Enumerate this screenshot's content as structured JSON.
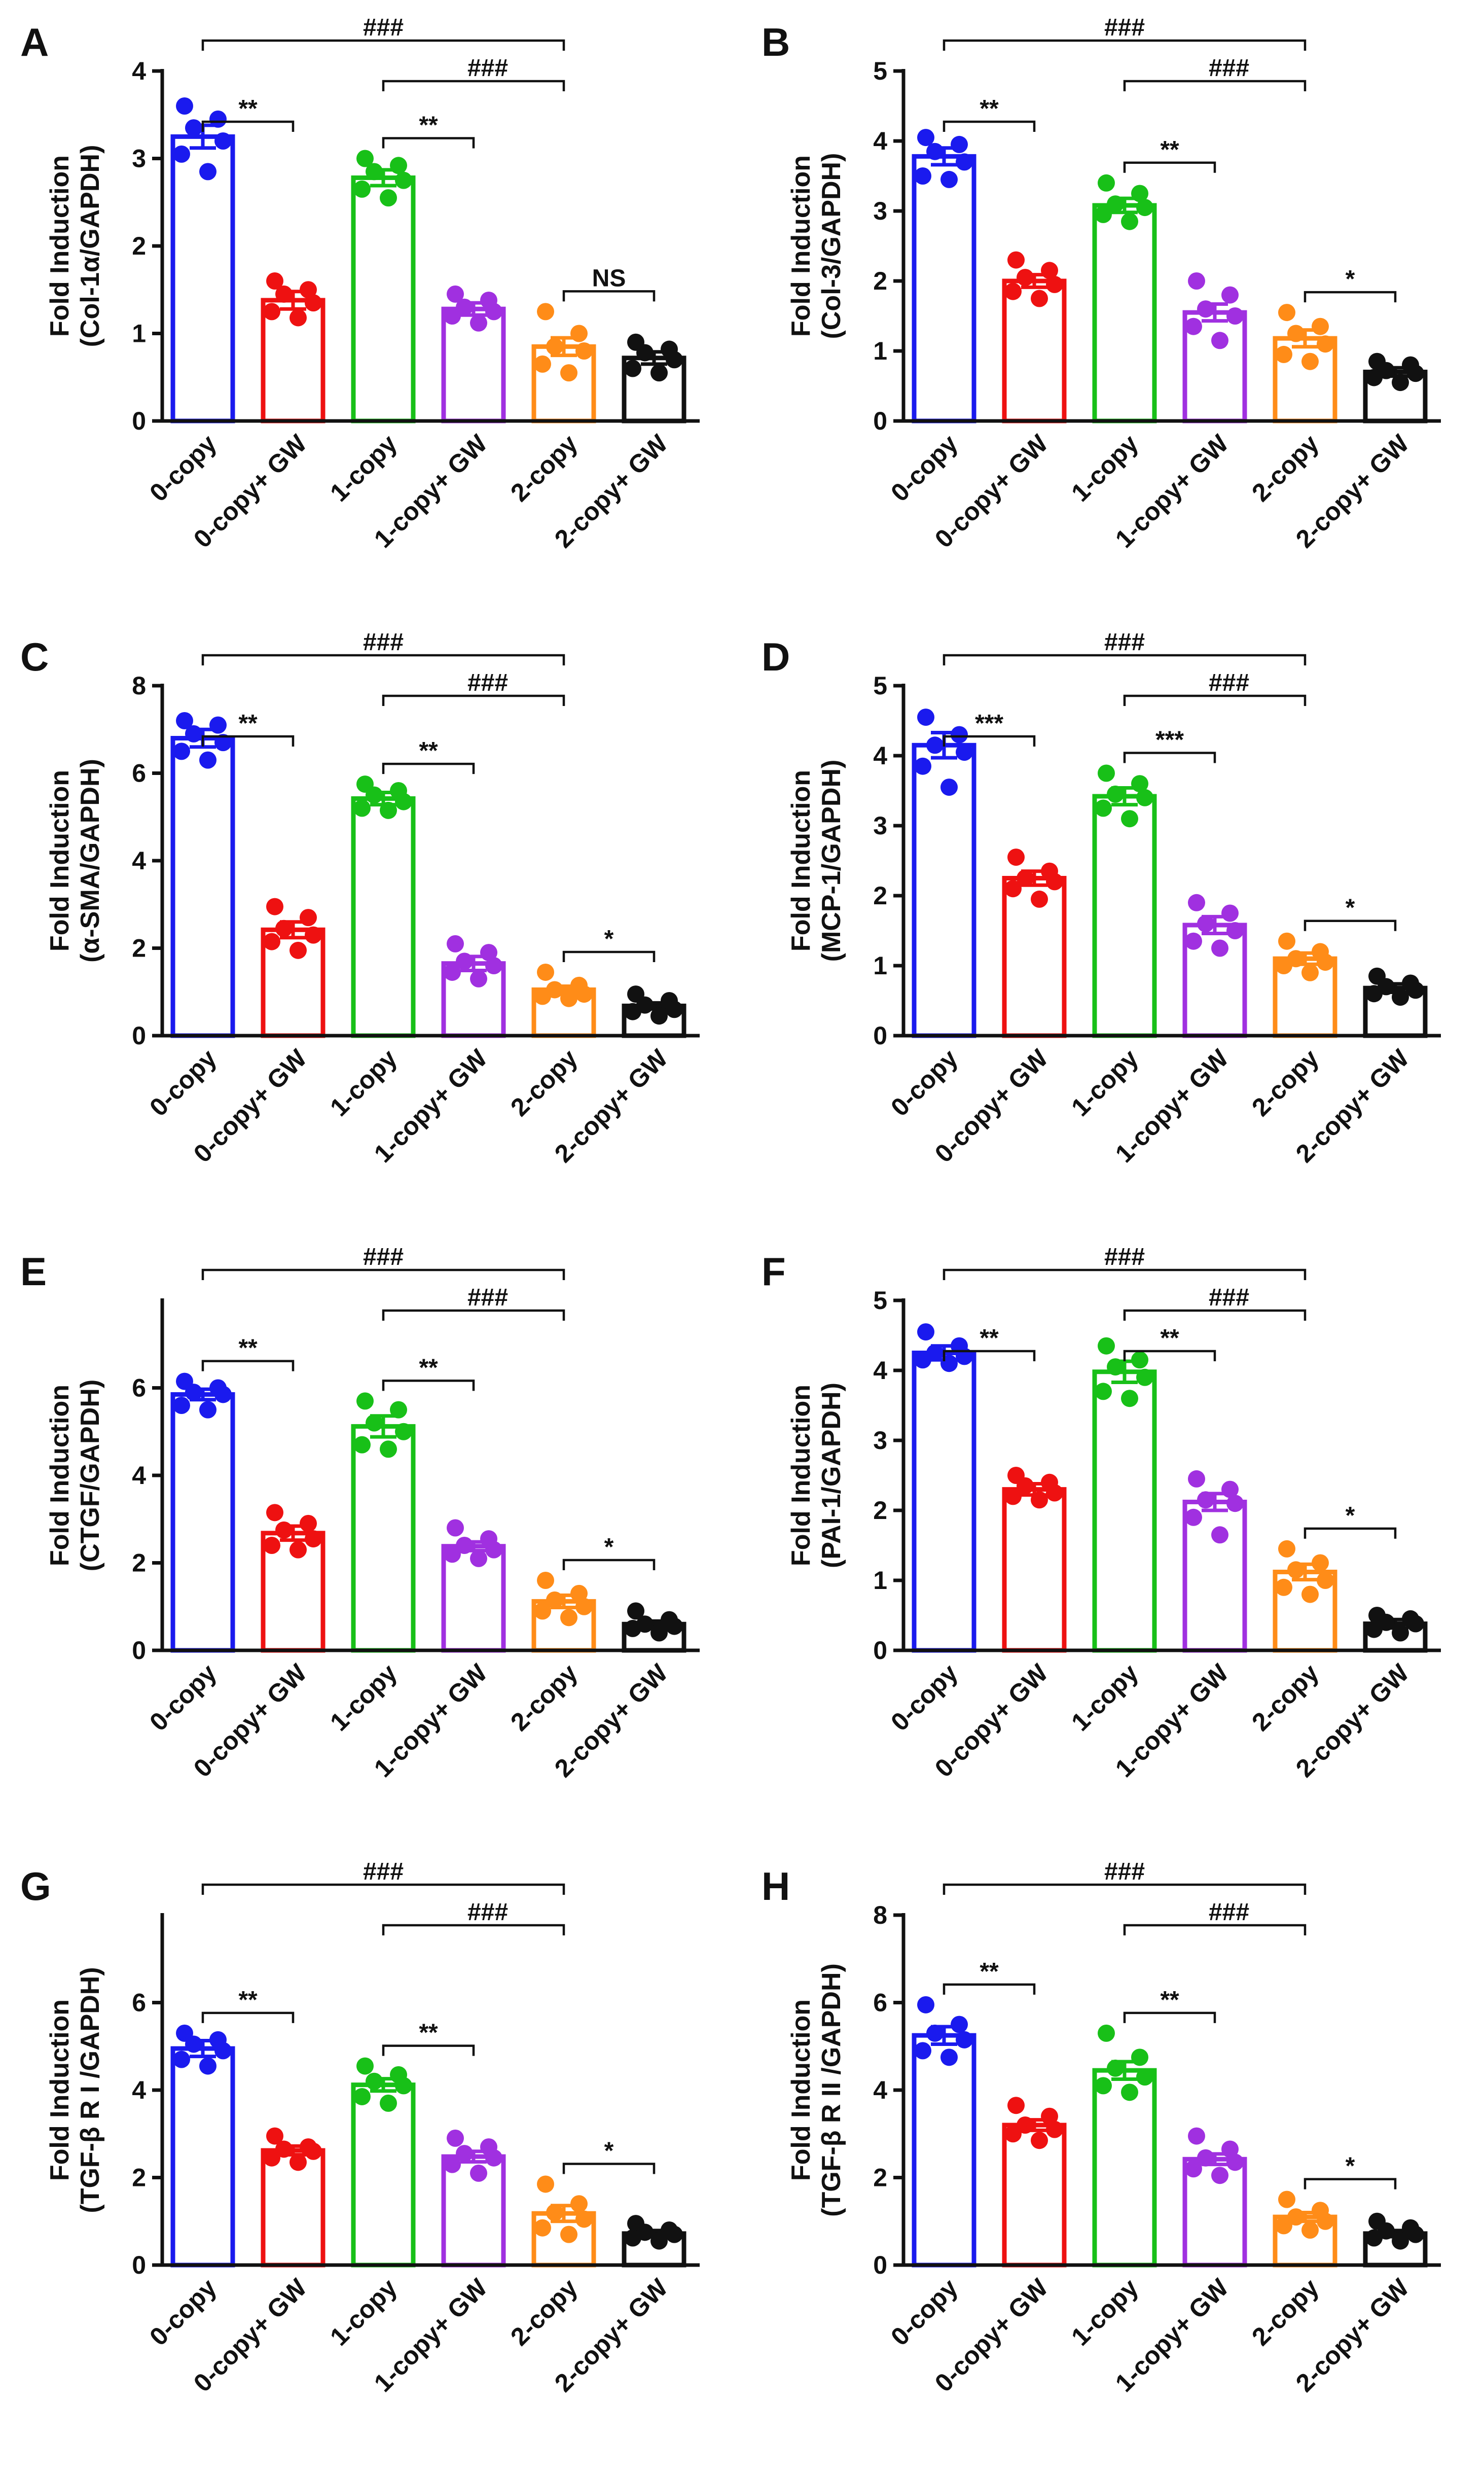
{
  "figure": {
    "groups": [
      "0-copy",
      "0-copy+ GW",
      "1-copy",
      "1-copy+ GW",
      "2-copy",
      "2-copy+ GW"
    ],
    "colors": [
      "#1a1aee",
      "#ee1111",
      "#18c018",
      "#a030e0",
      "#ff8c18",
      "#111111"
    ]
  },
  "chart_data": [
    {
      "type": "bar",
      "panel": "A",
      "ylabel_line1": "Fold Induction",
      "ylabel_line2": "(Col-1α/GAPDH)",
      "categories": [
        "0-copy",
        "0-copy+ GW",
        "1-copy",
        "1-copy+ GW",
        "2-copy",
        "2-copy+ GW"
      ],
      "values": [
        3.25,
        1.38,
        2.78,
        1.28,
        0.85,
        0.72
      ],
      "sem": [
        0.13,
        0.1,
        0.09,
        0.07,
        0.1,
        0.07
      ],
      "points": [
        [
          3.6,
          3.45,
          3.35,
          3.2,
          3.05,
          2.85
        ],
        [
          1.6,
          1.5,
          1.45,
          1.35,
          1.25,
          1.18
        ],
        [
          3.0,
          2.92,
          2.85,
          2.75,
          2.65,
          2.55
        ],
        [
          1.45,
          1.38,
          1.3,
          1.25,
          1.2,
          1.12
        ],
        [
          1.25,
          1.0,
          0.85,
          0.8,
          0.65,
          0.55
        ],
        [
          0.9,
          0.82,
          0.78,
          0.7,
          0.6,
          0.55
        ]
      ],
      "ylim": [
        0,
        4
      ],
      "yticks": [
        0,
        1,
        2,
        3,
        4
      ],
      "tick_labels": [
        "0",
        "1",
        "2",
        "3",
        "4"
      ],
      "annotations": [
        {
          "from": 0,
          "to": 1,
          "level": 0,
          "label": "**"
        },
        {
          "from": 0,
          "to": 4,
          "level": 1,
          "label": "###"
        },
        {
          "from": 2,
          "to": 3,
          "level": 0,
          "label": "**"
        },
        {
          "from": 2,
          "to": 4,
          "level": 0.5,
          "label": "###"
        },
        {
          "from": 4,
          "to": 5,
          "level": 0,
          "label": "NS"
        }
      ]
    },
    {
      "type": "bar",
      "panel": "B",
      "ylabel_line1": "Fold Induction",
      "ylabel_line2": "(Col-3/GAPDH)",
      "categories": [
        "0-copy",
        "0-copy+ GW",
        "1-copy",
        "1-copy+ GW",
        "2-copy",
        "2-copy+ GW"
      ],
      "values": [
        3.78,
        2.0,
        3.08,
        1.55,
        1.18,
        0.7
      ],
      "sem": [
        0.12,
        0.09,
        0.1,
        0.12,
        0.12,
        0.06
      ],
      "points": [
        [
          4.05,
          3.95,
          3.85,
          3.7,
          3.5,
          3.45
        ],
        [
          2.3,
          2.15,
          2.05,
          1.95,
          1.85,
          1.75
        ],
        [
          3.4,
          3.25,
          3.1,
          3.05,
          2.95,
          2.85
        ],
        [
          2.0,
          1.8,
          1.6,
          1.5,
          1.35,
          1.15
        ],
        [
          1.55,
          1.35,
          1.25,
          1.1,
          0.95,
          0.85
        ],
        [
          0.85,
          0.8,
          0.72,
          0.68,
          0.62,
          0.55
        ]
      ],
      "ylim": [
        0,
        5
      ],
      "yticks": [
        0,
        1,
        2,
        3,
        4,
        5
      ],
      "tick_labels": [
        "0",
        "1",
        "2",
        "3",
        "4",
        "5"
      ],
      "annotations": [
        {
          "from": 0,
          "to": 1,
          "level": 0,
          "label": "**"
        },
        {
          "from": 0,
          "to": 4,
          "level": 1,
          "label": "###"
        },
        {
          "from": 2,
          "to": 3,
          "level": 0,
          "label": "**"
        },
        {
          "from": 2,
          "to": 4,
          "level": 0.5,
          "label": "###"
        },
        {
          "from": 4,
          "to": 5,
          "level": 0,
          "label": "*"
        }
      ]
    },
    {
      "type": "bar",
      "panel": "C",
      "ylabel_line1": "Fold Induction",
      "ylabel_line2": "(α-SMA/GAPDH)",
      "categories": [
        "0-copy",
        "0-copy+ GW",
        "1-copy",
        "1-copy+ GW",
        "2-copy",
        "2-copy+ GW"
      ],
      "values": [
        6.8,
        2.42,
        5.42,
        1.65,
        1.05,
        0.68
      ],
      "sem": [
        0.2,
        0.18,
        0.14,
        0.16,
        0.08,
        0.07
      ],
      "points": [
        [
          7.2,
          7.1,
          6.9,
          6.7,
          6.5,
          6.3
        ],
        [
          2.95,
          2.7,
          2.45,
          2.3,
          2.15,
          1.95
        ],
        [
          5.75,
          5.6,
          5.5,
          5.35,
          5.2,
          5.15
        ],
        [
          2.1,
          1.9,
          1.7,
          1.6,
          1.45,
          1.3
        ],
        [
          1.45,
          1.15,
          1.05,
          0.95,
          0.9,
          0.85
        ],
        [
          0.95,
          0.8,
          0.7,
          0.6,
          0.55,
          0.45
        ]
      ],
      "ylim": [
        0,
        8
      ],
      "yticks": [
        0,
        2,
        4,
        6,
        8
      ],
      "tick_labels": [
        "0",
        "2",
        "4",
        "6",
        "8"
      ],
      "annotations": [
        {
          "from": 0,
          "to": 1,
          "level": 0,
          "label": "**"
        },
        {
          "from": 0,
          "to": 4,
          "level": 1,
          "label": "###"
        },
        {
          "from": 2,
          "to": 3,
          "level": 0,
          "label": "**"
        },
        {
          "from": 2,
          "to": 4,
          "level": 0.5,
          "label": "###"
        },
        {
          "from": 4,
          "to": 5,
          "level": 0,
          "label": "*"
        }
      ]
    },
    {
      "type": "bar",
      "panel": "D",
      "ylabel_line1": "Fold Induction",
      "ylabel_line2": "(MCP-1/GAPDH)",
      "categories": [
        "0-copy",
        "0-copy+ GW",
        "1-copy",
        "1-copy+ GW",
        "2-copy",
        "2-copy+ GW"
      ],
      "values": [
        4.15,
        2.25,
        3.42,
        1.58,
        1.1,
        0.68
      ],
      "sem": [
        0.18,
        0.1,
        0.12,
        0.12,
        0.08,
        0.06
      ],
      "points": [
        [
          4.55,
          4.3,
          4.15,
          4.05,
          3.85,
          3.55
        ],
        [
          2.55,
          2.35,
          2.25,
          2.2,
          2.1,
          1.95
        ],
        [
          3.75,
          3.6,
          3.45,
          3.4,
          3.25,
          3.1
        ],
        [
          1.9,
          1.75,
          1.6,
          1.5,
          1.35,
          1.25
        ],
        [
          1.35,
          1.2,
          1.1,
          1.05,
          1.0,
          0.9
        ],
        [
          0.85,
          0.75,
          0.7,
          0.65,
          0.6,
          0.55
        ]
      ],
      "ylim": [
        0,
        5
      ],
      "yticks": [
        0,
        1,
        2,
        3,
        4,
        5
      ],
      "tick_labels": [
        "0",
        "1",
        "2",
        "3",
        "4",
        "5"
      ],
      "annotations": [
        {
          "from": 0,
          "to": 1,
          "level": 0,
          "label": "***"
        },
        {
          "from": 0,
          "to": 4,
          "level": 1,
          "label": "###"
        },
        {
          "from": 2,
          "to": 3,
          "level": 0,
          "label": "***"
        },
        {
          "from": 2,
          "to": 4,
          "level": 0.5,
          "label": "###"
        },
        {
          "from": 4,
          "to": 5,
          "level": 0,
          "label": "*"
        }
      ]
    },
    {
      "type": "bar",
      "panel": "E",
      "ylabel_line1": "Fold Induction",
      "ylabel_line2": "(CTGF/GAPDH)",
      "categories": [
        "0-copy",
        "0-copy+ GW",
        "1-copy",
        "1-copy+ GW",
        "2-copy",
        "2-copy+ GW"
      ],
      "values": [
        5.85,
        2.68,
        5.12,
        2.38,
        1.12,
        0.6
      ],
      "sem": [
        0.12,
        0.16,
        0.24,
        0.1,
        0.14,
        0.07
      ],
      "points": [
        [
          6.15,
          6.0,
          5.9,
          5.85,
          5.6,
          5.5
        ],
        [
          3.15,
          2.9,
          2.75,
          2.55,
          2.4,
          2.3
        ],
        [
          5.7,
          5.5,
          5.2,
          5.0,
          4.7,
          4.6
        ],
        [
          2.8,
          2.55,
          2.4,
          2.3,
          2.2,
          2.1
        ],
        [
          1.6,
          1.3,
          1.15,
          1.0,
          0.9,
          0.75
        ],
        [
          0.9,
          0.7,
          0.6,
          0.55,
          0.5,
          0.4
        ]
      ],
      "ylim": [
        0,
        8
      ],
      "yticks": [
        0,
        2,
        4,
        6
      ],
      "tick_labels": [
        "0",
        "2",
        "4",
        "6"
      ],
      "annotations": [
        {
          "from": 0,
          "to": 1,
          "level": 0,
          "label": "**"
        },
        {
          "from": 0,
          "to": 4,
          "level": 1,
          "label": "###"
        },
        {
          "from": 2,
          "to": 3,
          "level": 0,
          "label": "**"
        },
        {
          "from": 2,
          "to": 4,
          "level": 0.5,
          "label": "###"
        },
        {
          "from": 4,
          "to": 5,
          "level": 0,
          "label": "*"
        }
      ]
    },
    {
      "type": "bar",
      "panel": "F",
      "ylabel_line1": "Fold Induction",
      "ylabel_line2": "(PAI-1/GAPDH)",
      "categories": [
        "0-copy",
        "0-copy+ GW",
        "1-copy",
        "1-copy+ GW",
        "2-copy",
        "2-copy+ GW"
      ],
      "values": [
        4.25,
        2.3,
        3.98,
        2.12,
        1.12,
        0.38
      ],
      "sem": [
        0.1,
        0.08,
        0.15,
        0.12,
        0.11,
        0.06
      ],
      "points": [
        [
          4.55,
          4.35,
          4.25,
          4.2,
          4.15,
          4.1
        ],
        [
          2.5,
          2.4,
          2.35,
          2.25,
          2.2,
          2.15
        ],
        [
          4.35,
          4.15,
          4.05,
          3.9,
          3.7,
          3.6
        ],
        [
          2.45,
          2.3,
          2.15,
          2.1,
          1.9,
          1.65
        ],
        [
          1.45,
          1.25,
          1.15,
          1.0,
          0.9,
          0.8
        ],
        [
          0.5,
          0.45,
          0.4,
          0.38,
          0.3,
          0.25
        ]
      ],
      "ylim": [
        0,
        5
      ],
      "yticks": [
        0,
        1,
        2,
        3,
        4,
        5
      ],
      "tick_labels": [
        "0",
        "1",
        "2",
        "3",
        "4",
        "5"
      ],
      "annotations": [
        {
          "from": 0,
          "to": 1,
          "level": 0,
          "label": "**"
        },
        {
          "from": 0,
          "to": 4,
          "level": 1,
          "label": "###"
        },
        {
          "from": 2,
          "to": 3,
          "level": 0,
          "label": "**"
        },
        {
          "from": 2,
          "to": 4,
          "level": 0.5,
          "label": "###"
        },
        {
          "from": 4,
          "to": 5,
          "level": 0,
          "label": "*"
        }
      ]
    },
    {
      "type": "bar",
      "panel": "G",
      "ylabel_line1": "Fold Induction",
      "ylabel_line2": "(TGF-β R I /GAPDH)",
      "categories": [
        "0-copy",
        "0-copy+ GW",
        "1-copy",
        "1-copy+ GW",
        "2-copy",
        "2-copy+ GW"
      ],
      "values": [
        4.95,
        2.62,
        4.12,
        2.48,
        1.18,
        0.72
      ],
      "sem": [
        0.18,
        0.1,
        0.14,
        0.12,
        0.18,
        0.07
      ],
      "points": [
        [
          5.3,
          5.15,
          5.05,
          4.9,
          4.7,
          4.55
        ],
        [
          2.95,
          2.7,
          2.65,
          2.6,
          2.45,
          2.35
        ],
        [
          4.55,
          4.35,
          4.2,
          4.1,
          3.85,
          3.7
        ],
        [
          2.9,
          2.7,
          2.55,
          2.45,
          2.3,
          2.1
        ],
        [
          1.85,
          1.4,
          1.2,
          1.05,
          0.85,
          0.7
        ],
        [
          0.95,
          0.8,
          0.75,
          0.7,
          0.62,
          0.55
        ]
      ],
      "ylim": [
        0,
        8
      ],
      "yticks": [
        0,
        2,
        4,
        6
      ],
      "tick_labels": [
        "0",
        "2",
        "4",
        "6"
      ],
      "annotations": [
        {
          "from": 0,
          "to": 1,
          "level": 0,
          "label": "**"
        },
        {
          "from": 0,
          "to": 4,
          "level": 1,
          "label": "###"
        },
        {
          "from": 2,
          "to": 3,
          "level": 0,
          "label": "**"
        },
        {
          "from": 2,
          "to": 4,
          "level": 0.5,
          "label": "###"
        },
        {
          "from": 4,
          "to": 5,
          "level": 0,
          "label": "*"
        }
      ]
    },
    {
      "type": "bar",
      "panel": "H",
      "ylabel_line1": "Fold Induction",
      "ylabel_line2": "(TGF-β R II /GAPDH)",
      "categories": [
        "0-copy",
        "0-copy+ GW",
        "1-copy",
        "1-copy+ GW",
        "2-copy",
        "2-copy+ GW"
      ],
      "values": [
        5.25,
        3.2,
        4.45,
        2.42,
        1.1,
        0.72
      ],
      "sem": [
        0.2,
        0.12,
        0.2,
        0.12,
        0.1,
        0.07
      ],
      "points": [
        [
          5.95,
          5.5,
          5.3,
          5.15,
          4.9,
          4.75
        ],
        [
          3.65,
          3.4,
          3.2,
          3.1,
          3.0,
          2.85
        ],
        [
          5.3,
          4.75,
          4.5,
          4.3,
          4.1,
          3.95
        ],
        [
          2.95,
          2.65,
          2.45,
          2.35,
          2.2,
          2.05
        ],
        [
          1.5,
          1.25,
          1.1,
          1.0,
          0.9,
          0.8
        ],
        [
          1.0,
          0.85,
          0.78,
          0.7,
          0.62,
          0.55
        ]
      ],
      "ylim": [
        0,
        8
      ],
      "yticks": [
        0,
        2,
        4,
        6,
        8
      ],
      "tick_labels": [
        "0",
        "2",
        "4",
        "6",
        "8"
      ],
      "annotations": [
        {
          "from": 0,
          "to": 1,
          "level": 0,
          "label": "**"
        },
        {
          "from": 0,
          "to": 4,
          "level": 1,
          "label": "###"
        },
        {
          "from": 2,
          "to": 3,
          "level": 0,
          "label": "**"
        },
        {
          "from": 2,
          "to": 4,
          "level": 0.5,
          "label": "###"
        },
        {
          "from": 4,
          "to": 5,
          "level": 0,
          "label": "*"
        }
      ]
    }
  ]
}
